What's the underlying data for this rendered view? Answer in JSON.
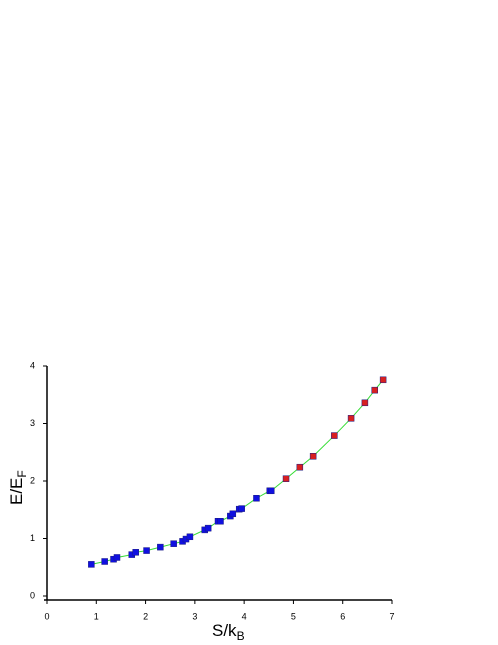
{
  "chart_data": {
    "type": "scatter",
    "x_label": {
      "main": "S/k",
      "sub": "B"
    },
    "y_label": {
      "main": "E/E",
      "sub": "F"
    },
    "xlim": [
      0,
      7
    ],
    "ylim": [
      0,
      4
    ],
    "xticks": [
      0,
      1,
      2,
      3,
      4,
      5,
      6,
      7
    ],
    "yticks": [
      0,
      1,
      2,
      3,
      4
    ],
    "line_color": "#33dd33",
    "series": [
      {
        "color": "#1010e0",
        "x": [
          0.9,
          1.17,
          1.35,
          1.42,
          1.72,
          1.8,
          2.02,
          2.3,
          2.57,
          2.75,
          2.82,
          2.9,
          3.2,
          3.27,
          3.47,
          3.52,
          3.72,
          3.77,
          3.9,
          3.95,
          4.25,
          4.52,
          4.55
        ],
        "values": [
          0.55,
          0.6,
          0.64,
          0.67,
          0.72,
          0.76,
          0.79,
          0.85,
          0.91,
          0.95,
          0.99,
          1.03,
          1.15,
          1.18,
          1.3,
          1.3,
          1.39,
          1.43,
          1.51,
          1.52,
          1.7,
          1.83,
          1.83
        ]
      },
      {
        "color": "#d82020",
        "x": [
          4.85,
          5.13,
          5.4,
          5.83,
          6.17,
          6.45,
          6.65,
          6.82
        ],
        "values": [
          2.04,
          2.24,
          2.43,
          2.79,
          3.09,
          3.36,
          3.58,
          3.76
        ]
      }
    ]
  }
}
